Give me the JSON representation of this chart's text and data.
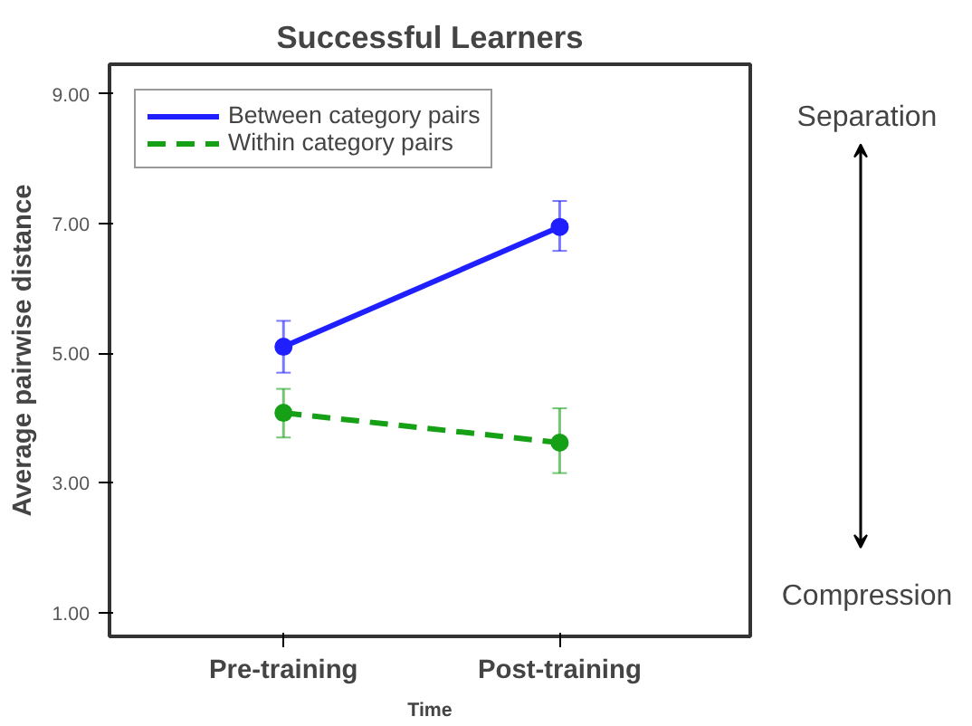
{
  "chart_data": {
    "type": "line",
    "title": "Successful Learners",
    "xlabel": "Time",
    "ylabel": "Average pairwise distance",
    "categories": [
      "Pre-training",
      "Post-training"
    ],
    "series": [
      {
        "name": "Between category pairs",
        "color": "#1f1fff",
        "values": [
          5.1,
          6.95
        ],
        "errors": [
          [
            4.7,
            5.5
          ],
          [
            6.58,
            7.35
          ]
        ],
        "line_style": "solid"
      },
      {
        "name": "Within category pairs",
        "color": "#16a016",
        "values": [
          4.08,
          3.62
        ],
        "errors": [
          [
            3.7,
            4.45
          ],
          [
            3.15,
            4.15
          ]
        ],
        "line_style": "dashed"
      }
    ],
    "ylim": [
      0.63,
      9.46
    ],
    "yticks": [
      {
        "value": 1,
        "label": "1.00"
      },
      {
        "value": 3,
        "label": "3.00"
      },
      {
        "value": 5,
        "label": "5.00"
      },
      {
        "value": 7,
        "label": "7.00"
      },
      {
        "value": 9,
        "label": "9.00"
      }
    ],
    "marker": "circle",
    "grid": false,
    "legend": "top left",
    "annotations": [
      "Separation",
      "Compression"
    ]
  }
}
